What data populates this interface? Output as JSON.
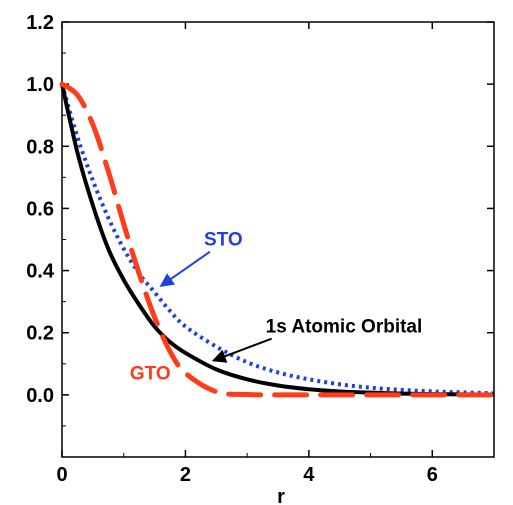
{
  "chart_data": {
    "type": "line",
    "xlabel": "r",
    "ylabel": "",
    "xlim": [
      0,
      7
    ],
    "ylim": [
      -0.2,
      1.2
    ],
    "x_ticks": [
      "0",
      "2",
      "4",
      "6"
    ],
    "y_ticks": [
      "0.0",
      "0.2",
      "0.4",
      "0.6",
      "0.8",
      "1.0",
      "1.2"
    ],
    "grid": false,
    "x": [
      0,
      0.25,
      0.5,
      0.75,
      1,
      1.25,
      1.5,
      1.75,
      2,
      2.5,
      3,
      3.5,
      4,
      4.5,
      5,
      5.5,
      6,
      6.5,
      7
    ],
    "series": [
      {
        "name": "1s Atomic Orbital",
        "color": "#000000",
        "style": "solid",
        "values": [
          1.0,
          0.78,
          0.61,
          0.47,
          0.37,
          0.29,
          0.22,
          0.17,
          0.135,
          0.082,
          0.05,
          0.03,
          0.018,
          0.011,
          0.007,
          0.004,
          0.0025,
          0.0015,
          0.0009
        ]
      },
      {
        "name": "STO",
        "color": "#1f3fe0",
        "style": "dotted",
        "values": [
          1.0,
          0.83,
          0.69,
          0.57,
          0.47,
          0.39,
          0.33,
          0.27,
          0.22,
          0.155,
          0.105,
          0.072,
          0.05,
          0.034,
          0.023,
          0.016,
          0.011,
          0.008,
          0.005
        ]
      },
      {
        "name": "GTO",
        "color": "#ff3b1a",
        "style": "dashed",
        "values": [
          1.0,
          0.965,
          0.87,
          0.72,
          0.55,
          0.39,
          0.25,
          0.14,
          0.07,
          0.01,
          0.001,
          0,
          0,
          0,
          0,
          0,
          0,
          0,
          0
        ]
      }
    ],
    "annotations": [
      {
        "text": "STO",
        "color": "#1f3fe0",
        "text_at": [
          2.3,
          0.48
        ],
        "arrow_to": [
          1.6,
          0.35
        ]
      },
      {
        "text": "1s Atomic Orbital",
        "color": "#000000",
        "text_at": [
          3.3,
          0.2
        ],
        "arrow_to": [
          2.45,
          0.11
        ]
      },
      {
        "text": "GTO",
        "color": "#ff3b1a",
        "text_at": [
          1.1,
          0.05
        ],
        "arrow_to": null
      }
    ]
  }
}
